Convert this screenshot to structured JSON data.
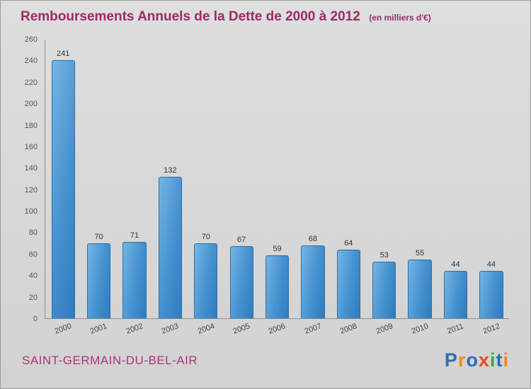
{
  "header": {
    "title": "Remboursements Annuels de la Dette de 2000 à 2012",
    "subtitle": "(en milliers d'€)"
  },
  "footer": {
    "place": "SAINT-GERMAIN-DU-BEL-AIR",
    "logo_letters": [
      {
        "ch": "P",
        "color": "#2b6cb8"
      },
      {
        "ch": "r",
        "color": "#f08a1d"
      },
      {
        "ch": "o",
        "color": "#2b6cb8"
      },
      {
        "ch": "x",
        "color": "#e8491d"
      },
      {
        "ch": "i",
        "color": "#38a93c"
      },
      {
        "ch": "t",
        "color": "#2b6cb8"
      },
      {
        "ch": "i",
        "color": "#f08a1d"
      }
    ]
  },
  "chart_data": {
    "type": "bar",
    "title": "Remboursements Annuels de la Dette de 2000 à 2012",
    "subtitle": "(en milliers d'€)",
    "categories": [
      "2000",
      "2001",
      "2002",
      "2003",
      "2004",
      "2005",
      "2006",
      "2007",
      "2008",
      "2009",
      "2010",
      "2011",
      "2012"
    ],
    "values": [
      241,
      70,
      71,
      132,
      70,
      67,
      59,
      68,
      64,
      53,
      55,
      44,
      44
    ],
    "xlabel": "",
    "ylabel": "",
    "ylim": [
      0,
      260
    ],
    "ytick_step": 20,
    "grid": false,
    "legend": false,
    "bar_color": "#4691cf"
  }
}
